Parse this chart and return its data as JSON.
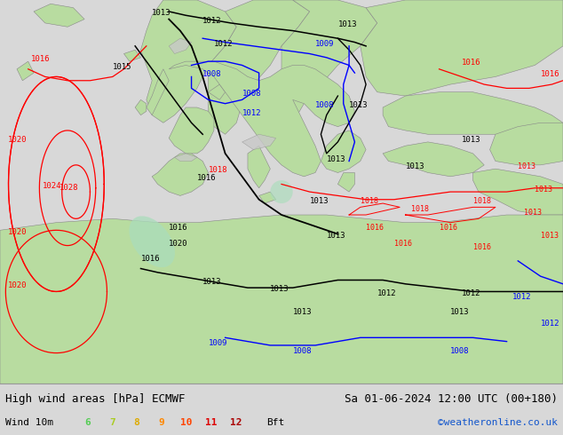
{
  "title_left": "High wind areas [hPa] ECMWF",
  "title_right": "Sa 01-06-2024 12:00 UTC (00+180)",
  "subtitle_left": "Wind 10m",
  "legend_numbers": [
    "6",
    "7",
    "8",
    "9",
    "10",
    "11",
    "12"
  ],
  "legend_suffix": "Bft",
  "legend_colors": [
    "#55cc55",
    "#aacc22",
    "#ddaa00",
    "#ff8800",
    "#ff4400",
    "#dd0000",
    "#aa0000"
  ],
  "copyright": "©weatheronline.co.uk",
  "copyright_color": "#1155cc",
  "bg_color": "#f0f0f0",
  "ocean_color": "#e8eef4",
  "land_color": "#b8dca0",
  "land_edge_color": "#888888",
  "gray_land_color": "#c8c8c8",
  "title_color": "#000000",
  "bottom_bar_color": "#d8d8d8",
  "font_size_title": 9,
  "font_size_legend": 8,
  "fig_width": 6.34,
  "fig_height": 4.9,
  "dpi": 100
}
